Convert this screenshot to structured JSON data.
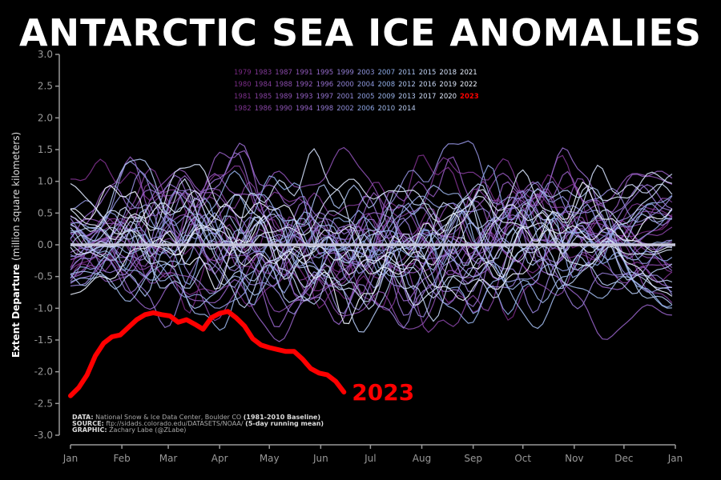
{
  "title": "ANTARCTIC SEA ICE ANOMALIES",
  "ylabel_bold": "Extent Departure",
  "ylabel_rest": "(million square kilometers)",
  "credits": {
    "data_label": "DATA:",
    "data_text": "National Snow & Ice Data Center, Boulder CO",
    "data_bold": "(1981-2010 Baseline)",
    "source_label": "SOURCE:",
    "source_text": "ftp://sidads.colorado.edu/DATASETS/NOAA/",
    "source_bold": "(5-day running mean)",
    "graphic_label": "GRAPHIC:",
    "graphic_text": "Zachary Labe (@ZLabe)"
  },
  "colors": {
    "background": "#000000",
    "highlight": "#ff0000",
    "zero_line": "#c8c8dc"
  },
  "chart_data": {
    "type": "line",
    "xlabel": "",
    "ylabel": "Extent Departure (million square kilometers)",
    "xticks": [
      "Jan",
      "Feb",
      "Mar",
      "Apr",
      "May",
      "Jun",
      "Jul",
      "Aug",
      "Sep",
      "Oct",
      "Nov",
      "Dec",
      "Jan"
    ],
    "yticks": [
      "-3.0",
      "-2.5",
      "-2.0",
      "-1.5",
      "-1.0",
      "-0.5",
      "0.0",
      "0.5",
      "1.0",
      "1.5",
      "2.0",
      "2.5",
      "3.0"
    ],
    "ylim": [
      -3.0,
      3.0
    ],
    "xlim_days": [
      0,
      365
    ],
    "grid": false,
    "legend_position": "top-center",
    "legend_columns": [
      [
        "1979",
        "1980",
        "1981",
        "1982"
      ],
      [
        "1983",
        "1984",
        "1985",
        "1986"
      ],
      [
        "1987",
        "1988",
        "1989",
        "1990"
      ],
      [
        "1991",
        "1992",
        "1993",
        "1994"
      ],
      [
        "1995",
        "1996",
        "1997",
        "1998"
      ],
      [
        "1999",
        "2000",
        "2001",
        "2002"
      ],
      [
        "2003",
        "2004",
        "2005",
        "2006"
      ],
      [
        "2007",
        "2008",
        "2009",
        "2010"
      ],
      [
        "2011",
        "2012",
        "2013",
        "2014"
      ],
      [
        "2015",
        "2016",
        "2017"
      ],
      [
        "2018",
        "2019",
        "2020"
      ],
      [
        "2021",
        "2022",
        "2023"
      ]
    ],
    "highlight_series": {
      "name": "2023",
      "x_day": [
        0,
        5,
        10,
        15,
        20,
        25,
        30,
        35,
        40,
        45,
        50,
        55,
        60,
        65,
        70,
        75,
        80,
        85,
        90,
        95,
        100,
        105,
        110,
        115,
        120,
        125,
        130,
        135,
        140,
        145,
        150,
        155,
        160,
        165
      ],
      "y": [
        -2.38,
        -2.25,
        -2.05,
        -1.75,
        -1.55,
        -1.45,
        -1.42,
        -1.3,
        -1.18,
        -1.1,
        -1.07,
        -1.1,
        -1.12,
        -1.22,
        -1.18,
        -1.25,
        -1.33,
        -1.15,
        -1.08,
        -1.05,
        -1.15,
        -1.28,
        -1.48,
        -1.58,
        -1.62,
        -1.65,
        -1.68,
        -1.68,
        -1.8,
        -1.95,
        -2.02,
        -2.05,
        -2.15,
        -2.32
      ]
    }
  }
}
